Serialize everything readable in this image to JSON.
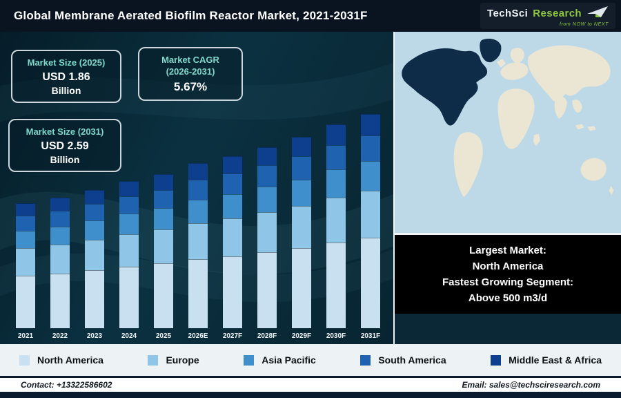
{
  "header": {
    "title": "Global Membrane Aerated Biofilm Reactor Market, 2021-2031F",
    "logo": {
      "brand_primary": "TechSci",
      "brand_secondary": "Research",
      "tagline": "from NOW to NEXT"
    }
  },
  "info_boxes": [
    {
      "title": "Market Size (2025)",
      "value": "USD 1.86",
      "unit": "Billion"
    },
    {
      "title_line1": "Market CAGR",
      "title_line2": "(2026-2031)",
      "value": "5.67%"
    },
    {
      "title": "Market Size (2031)",
      "value": "USD 2.59",
      "unit": "Billion"
    }
  ],
  "chart_data": {
    "type": "bar",
    "stacked": true,
    "title": "Global Membrane Aerated Biofilm Reactor Market, 2021-2031F",
    "units": "USD Billion",
    "categories": [
      "2021",
      "2022",
      "2023",
      "2024",
      "2025",
      "2026E",
      "2027F",
      "2028F",
      "2029F",
      "2030F",
      "2031F"
    ],
    "series": [
      {
        "name": "North America",
        "color": "#c9e0f1",
        "values": [
          0.63,
          0.66,
          0.7,
          0.74,
          0.78,
          0.83,
          0.87,
          0.92,
          0.97,
          1.03,
          1.09
        ]
      },
      {
        "name": "Europe",
        "color": "#8fc5e6",
        "values": [
          0.33,
          0.35,
          0.37,
          0.39,
          0.41,
          0.43,
          0.46,
          0.48,
          0.51,
          0.54,
          0.57
        ]
      },
      {
        "name": "Asia Pacific",
        "color": "#3f8fcd",
        "values": [
          0.21,
          0.22,
          0.23,
          0.25,
          0.26,
          0.28,
          0.29,
          0.31,
          0.32,
          0.34,
          0.36
        ]
      },
      {
        "name": "South America",
        "color": "#1f63b0",
        "values": [
          0.18,
          0.19,
          0.2,
          0.21,
          0.22,
          0.24,
          0.25,
          0.26,
          0.28,
          0.29,
          0.31
        ]
      },
      {
        "name": "Middle East & Africa",
        "color": "#0e3f8f",
        "values": [
          0.15,
          0.16,
          0.17,
          0.18,
          0.19,
          0.2,
          0.21,
          0.22,
          0.23,
          0.25,
          0.26
        ]
      }
    ],
    "totals_note": "Totals: 1.86 in 2025 and 2.59 in 2031, CAGR 5.67% (2026-2031)",
    "legend_position": "bottom",
    "grid": false
  },
  "map_panel": {
    "highlight_region": "North America",
    "ocean_color": "#bdd9e7",
    "land_color": "#eae6d3",
    "highlight_color": "#0e2b47"
  },
  "callout_box": {
    "lines": [
      "Largest Market:",
      "North America",
      "Fastest Growing Segment:",
      "Above 500 m3/d"
    ]
  },
  "legend": [
    {
      "label": "North America",
      "color": "#c9e0f1"
    },
    {
      "label": "Europe",
      "color": "#8fc5e6"
    },
    {
      "label": "Asia Pacific",
      "color": "#3f8fcd"
    },
    {
      "label": "South America",
      "color": "#1f63b0"
    },
    {
      "label": "Middle East & Africa",
      "color": "#0e3f8f"
    }
  ],
  "footer": {
    "contact": "Contact: +13322586602",
    "email": "Email: sales@techsciresearch.com"
  },
  "colors": {
    "header_bg": "#0a1420",
    "chart_bg": "#0b3140",
    "accent_teal": "#7fd8c9",
    "logo_green": "#8dc63f"
  }
}
